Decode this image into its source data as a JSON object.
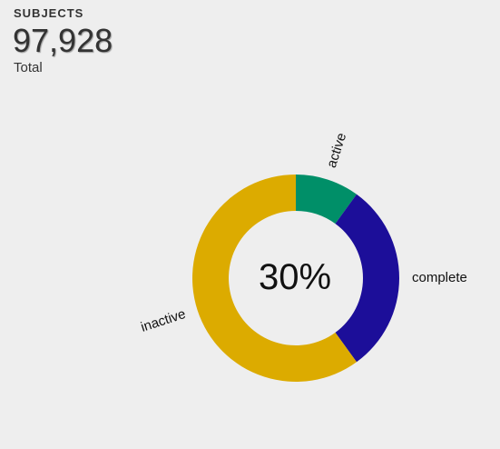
{
  "stat": {
    "heading": "SUBJECTS",
    "value": "97,928",
    "caption": "Total"
  },
  "chart_data": {
    "type": "pie",
    "variant": "donut",
    "center_label": "30%",
    "slices": [
      {
        "label": "active",
        "value": 10,
        "color": "#008f68"
      },
      {
        "label": "complete",
        "value": 30,
        "color": "#1c0e99"
      },
      {
        "label": "inactive",
        "value": 60,
        "color": "#dcab00"
      }
    ]
  }
}
